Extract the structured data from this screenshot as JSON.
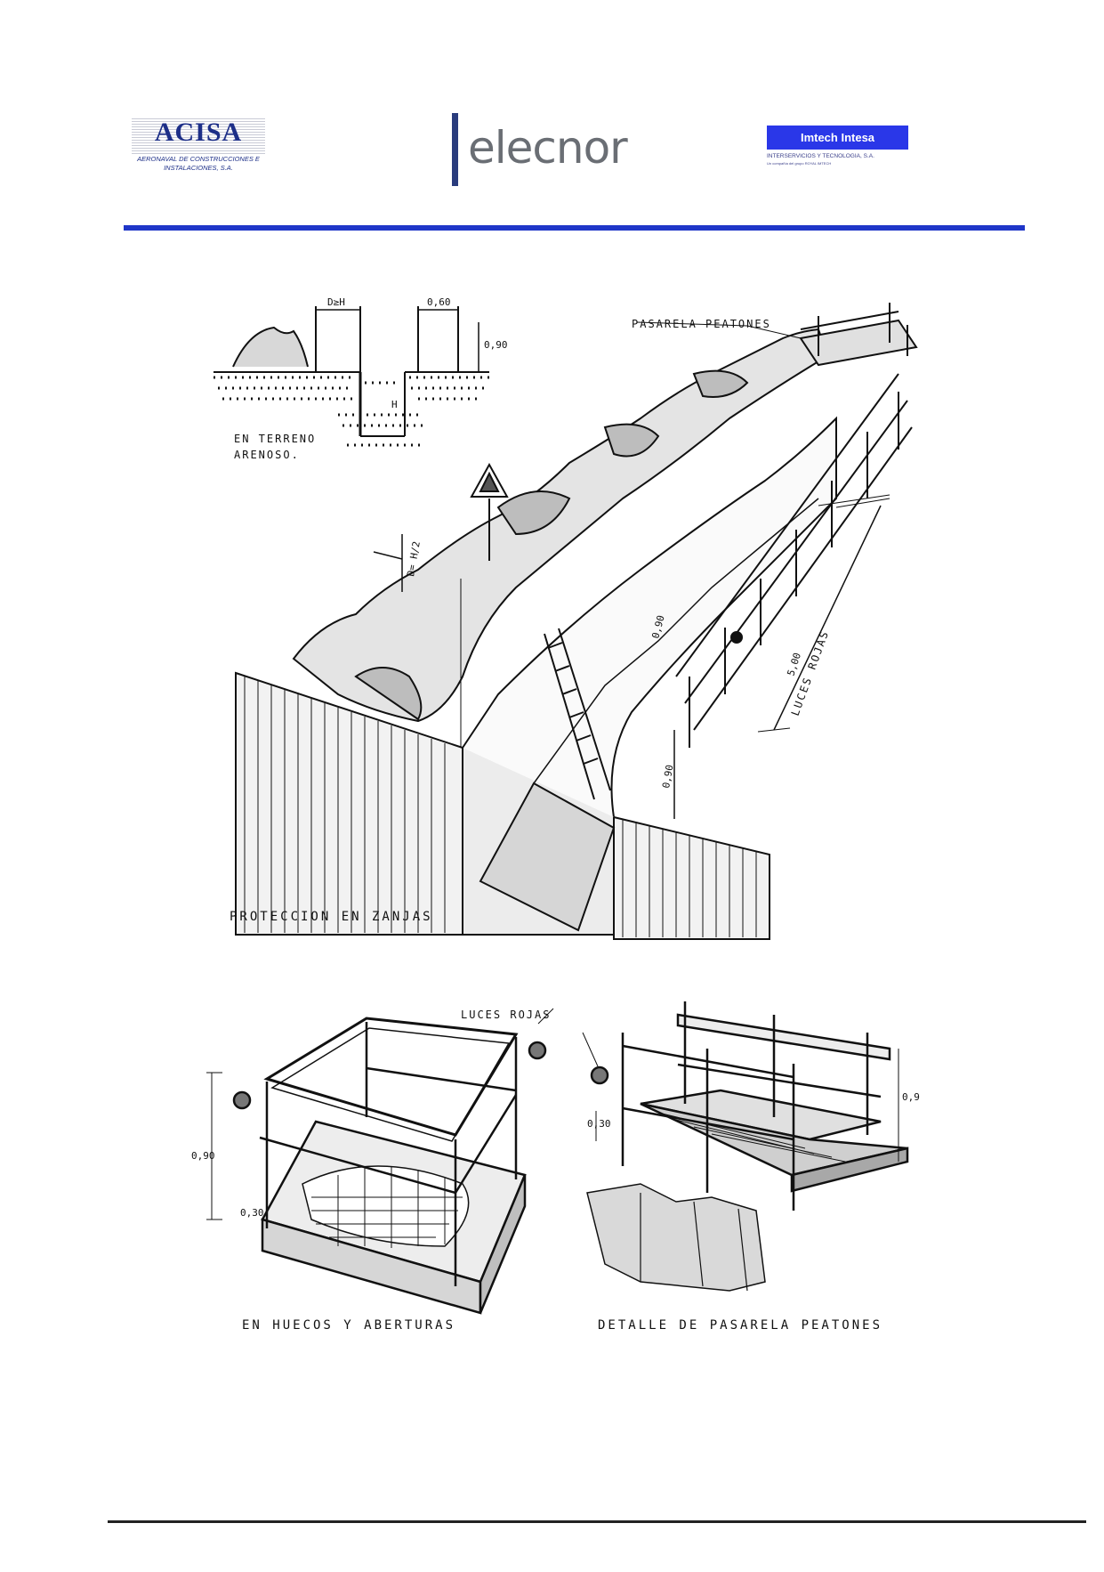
{
  "header": {
    "acisa": {
      "name": "ACISA",
      "subtitle_line1": "AERONAVAL DE CONSTRUCCIONES E",
      "subtitle_line2": "INSTALACIONES, S.A."
    },
    "elecnor": {
      "name": "elecnor"
    },
    "imtech": {
      "name": "Imtech Intesa",
      "subtitle": "INTERSERVICIOS Y TECNOLOGIA, S.A.",
      "tiny": "Un compañía del grupo ROYAL IMTECH"
    },
    "colors": {
      "rule": "#1f36c8",
      "acisa_blue": "#1d2f88",
      "imtech_blue": "#2a37e8",
      "elecnor_grey": "#6a6e74"
    }
  },
  "figure_top": {
    "pasarela_label": "PASARELA PEATONES",
    "dim_dh": "D≥H",
    "dim_060": "0,60",
    "dim_090_top": "0,90",
    "dim_h": "H",
    "sandy_line1": "EN TERRENO",
    "sandy_line2": "ARENOSO.",
    "dim_dh2": "D= H/2",
    "dim_090_mid": "0,90",
    "dim_500": "5,00",
    "luces_rojas_rot": "LUCES ROJAS",
    "dim_090_bot": "0,90",
    "caption": "PROTECCION EN ZANJAS"
  },
  "figure_bottom": {
    "luces_rojas": "LUCES ROJAS",
    "left_dim_090": "0,90",
    "left_dim_030": "0,30",
    "right_dim_030": "0,30",
    "right_dim_09": "0,9",
    "caption_left": "EN HUECOS Y ABERTURAS",
    "caption_right": "DETALLE DE PASARELA PEATONES"
  }
}
